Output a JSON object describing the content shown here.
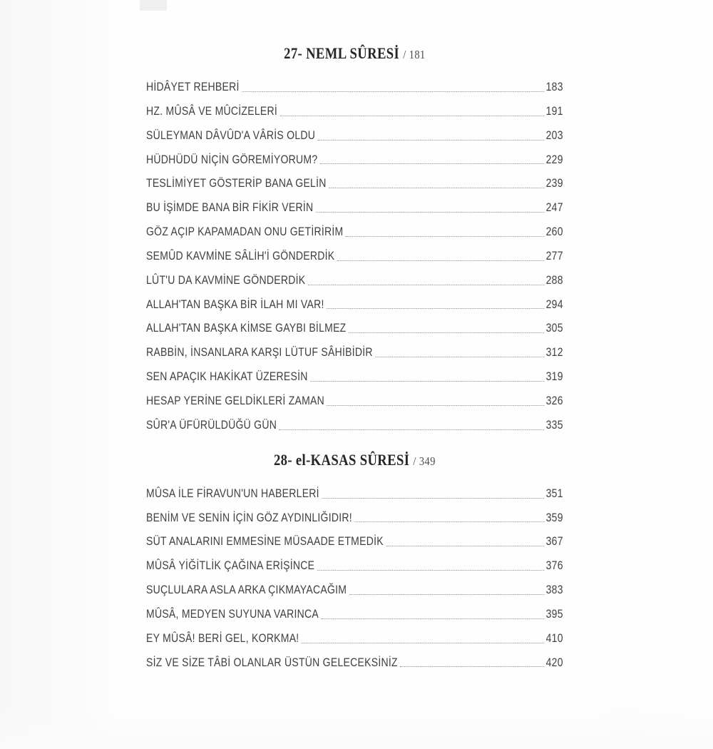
{
  "sections": [
    {
      "heading": "27- NEML SÛRESİ",
      "heading_page": "/ 181",
      "entries": [
        {
          "title": "HİDÂYET REHBERİ",
          "page": "183"
        },
        {
          "title": "HZ. MÛSÂ VE MÛCİZELERİ",
          "page": "191"
        },
        {
          "title": "SÜLEYMAN DÂVÛD'A VÂRİS OLDU",
          "page": "203"
        },
        {
          "title": "HÜDHÜDÜ NİÇİN GÖREMİYORUM?",
          "page": "229"
        },
        {
          "title": "TESLİMİYET GÖSTERİP BANA GELİN",
          "page": "239"
        },
        {
          "title": "BU İŞİMDE BANA BİR FİKİR VERİN",
          "page": "247"
        },
        {
          "title": "GÖZ AÇIP KAPAMADAN ONU GETİRİRİM",
          "page": "260"
        },
        {
          "title": "SEMÛD KAVMİNE SÂLİH'İ GÖNDERDİK",
          "page": "277"
        },
        {
          "title": "LÛT'U DA KAVMİNE GÖNDERDİK",
          "page": "288"
        },
        {
          "title": "ALLAH'TAN BAŞKA BİR İLAH MI VAR!",
          "page": "294"
        },
        {
          "title": "ALLAH'TAN BAŞKA KİMSE GAYBI BİLMEZ",
          "page": "305"
        },
        {
          "title": "RABBİN, İNSANLARA KARŞI LÜTUF SÂHİBİDİR",
          "page": "312"
        },
        {
          "title": "SEN APAÇIK HAKİKAT ÜZERESİN",
          "page": "319"
        },
        {
          "title": "HESAP YERİNE GELDİKLERİ ZAMAN",
          "page": "326"
        },
        {
          "title": "SÛR'A ÜFÜRÜLDÜĞÜ GÜN",
          "page": "335"
        }
      ]
    },
    {
      "heading": "28- el-KASAS SÛRESİ",
      "heading_page": "/ 349",
      "entries": [
        {
          "title": "MÛSA İLE FİRAVUN'UN HABERLERİ",
          "page": "351"
        },
        {
          "title": "BENİM VE SENİN İÇİN GÖZ AYDINLIĞIDIR!",
          "page": "359"
        },
        {
          "title": "SÜT ANALARINI EMMESİNE MÜSAADE ETMEDİK",
          "page": "367"
        },
        {
          "title": "MÛSÂ YİĞİTLİK ÇAĞINA ERİŞİNCE",
          "page": "376"
        },
        {
          "title": "SUÇLULARA ASLA ARKA ÇIKMAYACAĞIM",
          "page": "383"
        },
        {
          "title": "MÛSÂ, MEDYEN SUYUNA VARINCA",
          "page": "395"
        },
        {
          "title": "EY MÛSÂ! BERİ GEL, KORKMA!",
          "page": "410"
        },
        {
          "title": "SİZ VE SİZE TÂBİ OLANLAR ÜSTÜN GELECEKSİNİZ",
          "page": "420"
        }
      ]
    }
  ]
}
